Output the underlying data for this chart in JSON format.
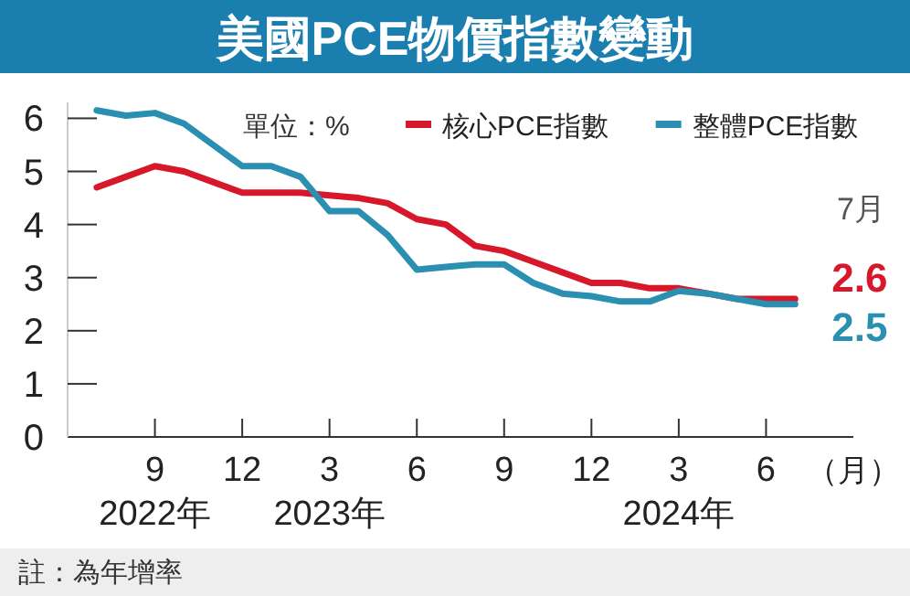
{
  "chart_data": {
    "type": "line",
    "title": "美國PCE物價指數變動",
    "xlabel": "（月）",
    "annotations": [
      "單位：%",
      "註：為年增率",
      "7月"
    ],
    "x": [
      "2022-07",
      "2022-08",
      "2022-09",
      "2022-10",
      "2022-11",
      "2022-12",
      "2023-01",
      "2023-02",
      "2023-03",
      "2023-04",
      "2023-05",
      "2023-06",
      "2023-07",
      "2023-08",
      "2023-09",
      "2023-10",
      "2023-11",
      "2023-12",
      "2024-01",
      "2024-02",
      "2024-03",
      "2024-04",
      "2024-05",
      "2024-06",
      "2024-07"
    ],
    "xlim": [
      "2022-06",
      "2024-09"
    ],
    "xticks": [
      {
        "value": "2022-09",
        "label": "9\n2022年"
      },
      {
        "value": "2022-12",
        "label": "12"
      },
      {
        "value": "2023-03",
        "label": "3\n2023年"
      },
      {
        "value": "2023-06",
        "label": "6"
      },
      {
        "value": "2023-09",
        "label": "9"
      },
      {
        "value": "2023-12",
        "label": "12"
      },
      {
        "value": "2024-03",
        "label": "3\n2024年"
      },
      {
        "value": "2024-06",
        "label": "6"
      }
    ],
    "ylim": [
      0,
      6.3
    ],
    "yticks": [
      0,
      1,
      2,
      3,
      4,
      5,
      6
    ],
    "grid": false,
    "legend": "top right",
    "marker": "none",
    "line_style": "solid",
    "series": [
      {
        "name": "核心PCE指數",
        "color": "#d7182a",
        "values": [
          4.7,
          4.9,
          5.1,
          5.0,
          4.8,
          4.6,
          4.6,
          4.6,
          4.55,
          4.5,
          4.4,
          4.1,
          4.0,
          3.6,
          3.5,
          3.3,
          3.1,
          2.9,
          2.9,
          2.8,
          2.8,
          2.7,
          2.6,
          2.6,
          2.6
        ],
        "value_labels": [
          null,
          null,
          null,
          null,
          null,
          null,
          null,
          null,
          null,
          null,
          null,
          null,
          null,
          null,
          null,
          null,
          null,
          null,
          null,
          null,
          null,
          null,
          null,
          null,
          "2.6"
        ]
      },
      {
        "name": "整體PCE指數",
        "color": "#2a8fb0",
        "values": [
          6.15,
          6.05,
          6.1,
          5.9,
          5.5,
          5.1,
          5.1,
          4.9,
          4.25,
          4.25,
          3.8,
          3.15,
          3.2,
          3.25,
          3.25,
          2.9,
          2.7,
          2.65,
          2.55,
          2.55,
          2.75,
          2.7,
          2.6,
          2.5,
          2.5
        ],
        "value_labels": [
          null,
          null,
          null,
          null,
          null,
          null,
          null,
          null,
          null,
          null,
          null,
          null,
          null,
          null,
          null,
          null,
          null,
          null,
          null,
          null,
          null,
          null,
          null,
          null,
          "2.5"
        ]
      }
    ]
  }
}
